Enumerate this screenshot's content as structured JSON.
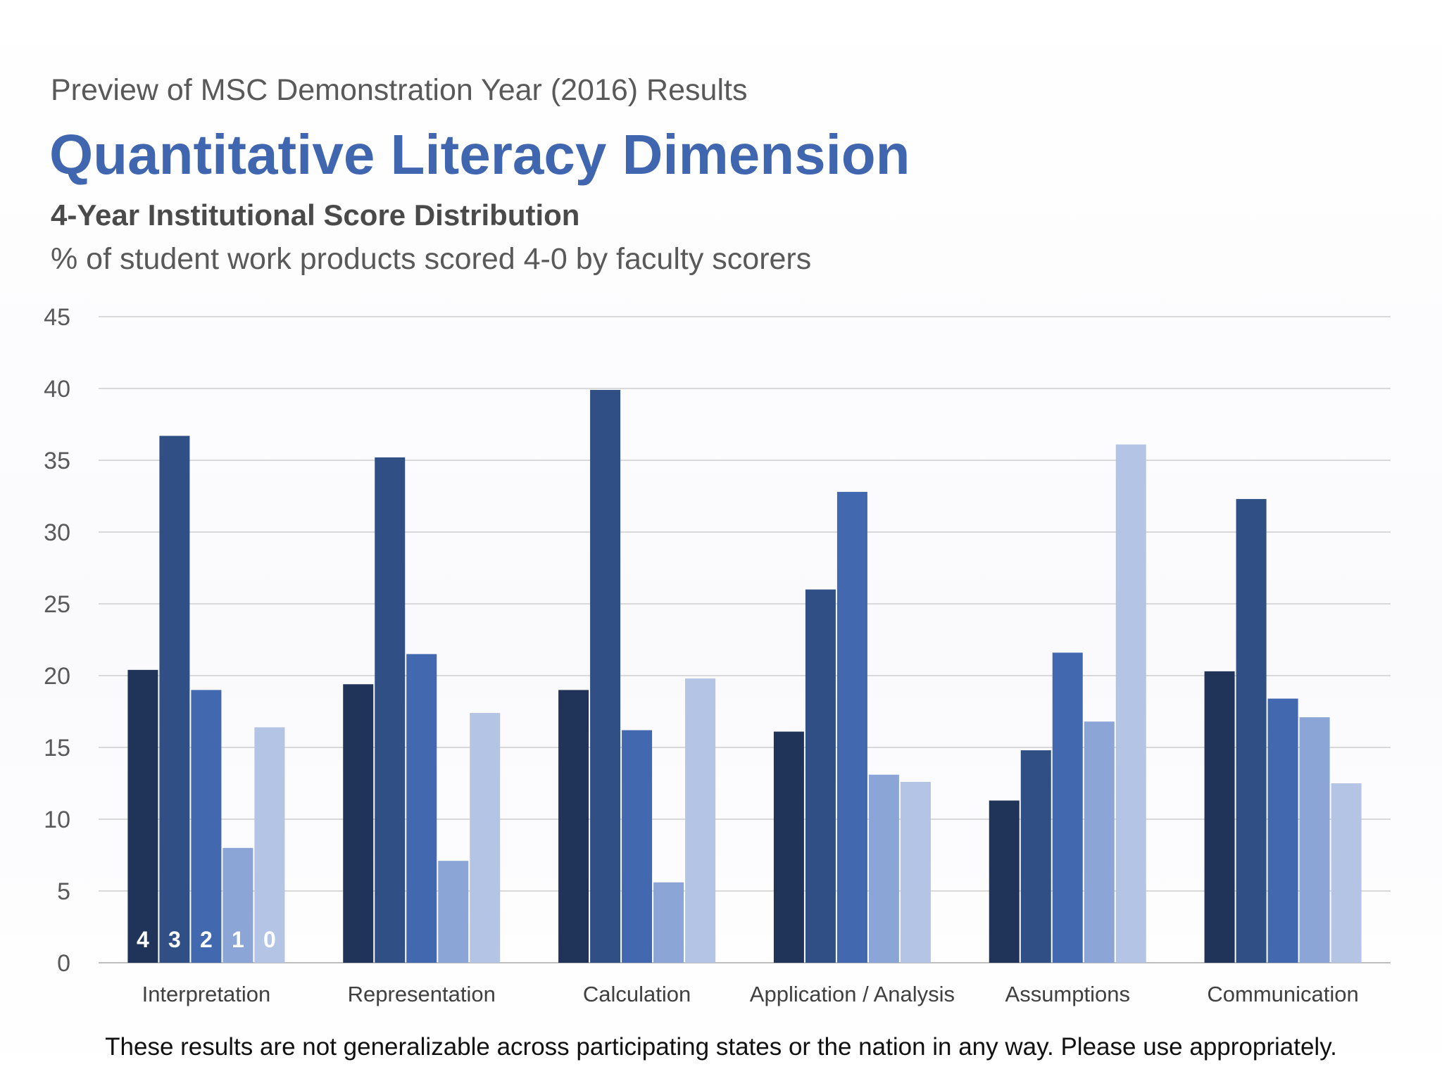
{
  "header": {
    "pretitle": "Preview of MSC Demonstration Year (2016) Results",
    "title": "Quantitative Literacy Dimension",
    "subtitle": "4-Year Institutional Score Distribution",
    "caption": "% of student work products scored 4-0 by faculty scorers"
  },
  "footer": {
    "note": "These results are not generalizable across participating states or the nation in any way. Please use appropriately."
  },
  "chart_data": {
    "type": "bar",
    "title": "",
    "xlabel": "",
    "ylabel": "",
    "ylim": [
      0,
      45
    ],
    "yticks": [
      0,
      5,
      10,
      15,
      20,
      25,
      30,
      35,
      40,
      45
    ],
    "grid": true,
    "legend": "inside first group, score numbers on bars",
    "categories": [
      "Interpretation",
      "Representation",
      "Calculation",
      "Application / Analysis",
      "Assumptions",
      "Communication"
    ],
    "series": [
      {
        "name": "4",
        "color": "#203359",
        "values": [
          20.4,
          19.4,
          19.0,
          16.1,
          11.3,
          20.3
        ]
      },
      {
        "name": "3",
        "color": "#2f4f85",
        "values": [
          36.7,
          35.2,
          39.9,
          26.0,
          14.8,
          32.3
        ]
      },
      {
        "name": "2",
        "color": "#4268b0",
        "values": [
          19.0,
          21.5,
          16.2,
          32.8,
          21.6,
          18.4
        ]
      },
      {
        "name": "1",
        "color": "#8ba6d6",
        "values": [
          8.0,
          7.1,
          5.6,
          13.1,
          16.8,
          17.1
        ]
      },
      {
        "name": "0",
        "color": "#b3c4e4",
        "values": [
          16.4,
          17.4,
          19.8,
          12.6,
          36.1,
          12.5
        ]
      }
    ]
  }
}
